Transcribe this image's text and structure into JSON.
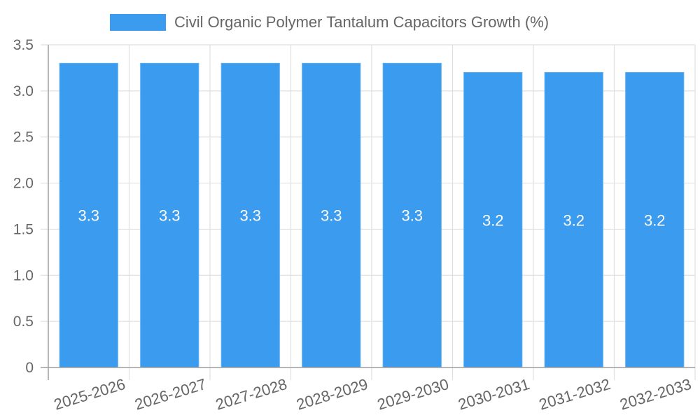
{
  "legend": {
    "label": "Civil Organic Polymer Tantalum Capacitors Growth (%)",
    "color": "#3a9bef"
  },
  "chart_data": {
    "type": "bar",
    "title": "",
    "xlabel": "",
    "ylabel": "",
    "categories": [
      "2025-2026",
      "2026-2027",
      "2027-2028",
      "2028-2029",
      "2029-2030",
      "2030-2031",
      "2031-2032",
      "2032-2033"
    ],
    "series": [
      {
        "name": "Civil Organic Polymer Tantalum Capacitors Growth (%)",
        "values": [
          3.3,
          3.3,
          3.3,
          3.3,
          3.3,
          3.2,
          3.2,
          3.2
        ],
        "color": "#3a9bef"
      }
    ],
    "ylim": [
      0,
      3.5
    ],
    "yticks": [
      0,
      0.5,
      1.0,
      1.5,
      2.0,
      2.5,
      3.0,
      3.5
    ],
    "ytick_labels": [
      "0",
      "0.5",
      "1.0",
      "1.5",
      "2.0",
      "2.5",
      "3.0",
      "3.5"
    ],
    "data_labels": [
      "3.3",
      "3.3",
      "3.3",
      "3.3",
      "3.3",
      "3.2",
      "3.2",
      "3.2"
    ],
    "grid": true,
    "legend_position": "top"
  }
}
